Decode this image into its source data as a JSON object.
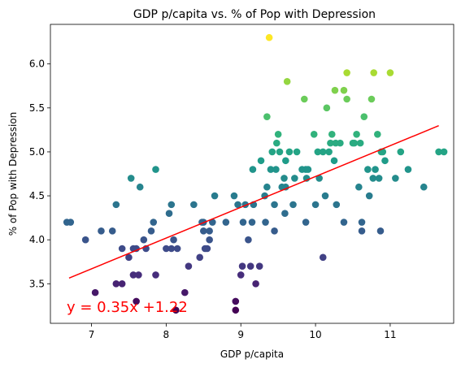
{
  "chart_data": {
    "type": "scatter",
    "title": "GDP p/capita vs. % of Pop with Depression",
    "xlabel": "GDP p/capita",
    "ylabel": "% of Pop with Depression",
    "xlim": [
      6.45,
      11.85
    ],
    "ylim": [
      3.05,
      6.45
    ],
    "xticks": [
      7,
      8,
      9,
      10,
      11
    ],
    "yticks": [
      3.5,
      4.0,
      4.5,
      5.0,
      5.5,
      6.0
    ],
    "xtick_labels": [
      "7",
      "8",
      "9",
      "10",
      "11"
    ],
    "ytick_labels": [
      "3.5",
      "4.0",
      "4.5",
      "5.0",
      "5.5",
      "6.0"
    ],
    "colormap": "viridis",
    "color_by": "y",
    "points": [
      [
        6.67,
        4.2
      ],
      [
        6.72,
        4.2
      ],
      [
        6.92,
        4.0
      ],
      [
        7.05,
        3.4
      ],
      [
        7.13,
        4.1
      ],
      [
        7.28,
        4.1
      ],
      [
        7.33,
        4.4
      ],
      [
        7.33,
        3.5
      ],
      [
        7.41,
        3.9
      ],
      [
        7.41,
        3.5
      ],
      [
        7.5,
        3.8
      ],
      [
        7.53,
        4.7
      ],
      [
        7.56,
        3.9
      ],
      [
        7.56,
        3.6
      ],
      [
        7.6,
        3.3
      ],
      [
        7.6,
        3.9
      ],
      [
        7.63,
        3.6
      ],
      [
        7.65,
        4.6
      ],
      [
        7.7,
        4.0
      ],
      [
        7.73,
        3.9
      ],
      [
        7.8,
        4.1
      ],
      [
        7.83,
        4.2
      ],
      [
        7.86,
        4.8
      ],
      [
        7.86,
        3.6
      ],
      [
        8.0,
        3.9
      ],
      [
        8.04,
        4.3
      ],
      [
        8.07,
        4.4
      ],
      [
        8.07,
        3.9
      ],
      [
        8.1,
        4.0
      ],
      [
        8.13,
        3.2
      ],
      [
        8.15,
        3.9
      ],
      [
        8.25,
        3.4
      ],
      [
        8.3,
        3.7
      ],
      [
        8.37,
        4.4
      ],
      [
        8.45,
        3.8
      ],
      [
        8.48,
        4.2
      ],
      [
        8.5,
        4.2
      ],
      [
        8.5,
        4.1
      ],
      [
        8.52,
        3.9
      ],
      [
        8.55,
        3.9
      ],
      [
        8.58,
        4.0
      ],
      [
        8.58,
        4.1
      ],
      [
        8.62,
        4.2
      ],
      [
        8.65,
        4.5
      ],
      [
        8.8,
        4.2
      ],
      [
        8.91,
        4.5
      ],
      [
        8.93,
        3.3
      ],
      [
        8.93,
        3.2
      ],
      [
        8.96,
        4.4
      ],
      [
        9.0,
        3.6
      ],
      [
        9.02,
        3.7
      ],
      [
        9.03,
        4.2
      ],
      [
        9.06,
        4.4
      ],
      [
        9.1,
        4.0
      ],
      [
        9.13,
        3.7
      ],
      [
        9.15,
        4.2
      ],
      [
        9.16,
        4.8
      ],
      [
        9.17,
        4.4
      ],
      [
        9.2,
        3.5
      ],
      [
        9.25,
        3.7
      ],
      [
        9.27,
        4.9
      ],
      [
        9.32,
        4.5
      ],
      [
        9.33,
        4.2
      ],
      [
        9.35,
        4.6
      ],
      [
        9.35,
        5.4
      ],
      [
        9.38,
        6.3
      ],
      [
        9.4,
        4.8
      ],
      [
        9.42,
        5.0
      ],
      [
        9.45,
        4.1
      ],
      [
        9.45,
        4.4
      ],
      [
        9.47,
        4.8
      ],
      [
        9.48,
        5.1
      ],
      [
        9.5,
        5.2
      ],
      [
        9.52,
        5.0
      ],
      [
        9.55,
        4.6
      ],
      [
        9.58,
        4.7
      ],
      [
        9.59,
        4.3
      ],
      [
        9.6,
        4.6
      ],
      [
        9.6,
        4.9
      ],
      [
        9.62,
        5.8
      ],
      [
        9.65,
        5.0
      ],
      [
        9.7,
        4.4
      ],
      [
        9.72,
        4.7
      ],
      [
        9.75,
        5.0
      ],
      [
        9.82,
        4.8
      ],
      [
        9.85,
        5.6
      ],
      [
        9.87,
        4.2
      ],
      [
        9.87,
        4.8
      ],
      [
        9.88,
        4.7
      ],
      [
        9.9,
        4.8
      ],
      [
        9.98,
        5.2
      ],
      [
        10.0,
        4.4
      ],
      [
        10.03,
        5.0
      ],
      [
        10.05,
        4.7
      ],
      [
        10.1,
        3.8
      ],
      [
        10.1,
        5.0
      ],
      [
        10.13,
        4.5
      ],
      [
        10.15,
        5.5
      ],
      [
        10.18,
        5.0
      ],
      [
        10.2,
        5.1
      ],
      [
        10.22,
        5.2
      ],
      [
        10.25,
        4.9
      ],
      [
        10.26,
        5.7
      ],
      [
        10.27,
        5.1
      ],
      [
        10.28,
        4.4
      ],
      [
        10.33,
        5.1
      ],
      [
        10.38,
        4.2
      ],
      [
        10.38,
        5.7
      ],
      [
        10.42,
        5.6
      ],
      [
        10.42,
        5.9
      ],
      [
        10.5,
        5.1
      ],
      [
        10.52,
        5.1
      ],
      [
        10.55,
        5.2
      ],
      [
        10.58,
        4.6
      ],
      [
        10.6,
        5.1
      ],
      [
        10.62,
        4.2
      ],
      [
        10.62,
        4.1
      ],
      [
        10.65,
        5.4
      ],
      [
        10.7,
        4.8
      ],
      [
        10.72,
        4.5
      ],
      [
        10.75,
        5.6
      ],
      [
        10.77,
        4.7
      ],
      [
        10.78,
        5.9
      ],
      [
        10.8,
        4.8
      ],
      [
        10.83,
        5.2
      ],
      [
        10.85,
        4.7
      ],
      [
        10.87,
        4.1
      ],
      [
        10.88,
        5.0
      ],
      [
        10.9,
        5.0
      ],
      [
        10.93,
        4.9
      ],
      [
        11.0,
        5.9
      ],
      [
        11.07,
        4.7
      ],
      [
        11.14,
        5.0
      ],
      [
        11.24,
        4.8
      ],
      [
        11.45,
        4.6
      ],
      [
        11.65,
        5.0
      ],
      [
        11.72,
        5.0
      ]
    ],
    "regression": {
      "slope": 0.35,
      "intercept": 1.22,
      "x_range": [
        6.7,
        11.65
      ],
      "line_color": "#ff0000",
      "equation_label": "y = 0.35x +1.22"
    }
  }
}
